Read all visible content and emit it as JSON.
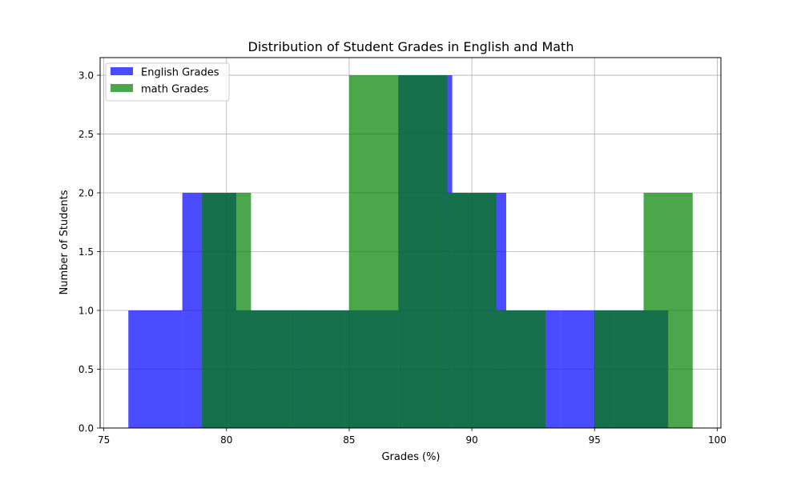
{
  "chart_data": {
    "type": "histogram",
    "title": "Distribution of Student Grades in English and Math",
    "xlabel": "Grades (%)",
    "ylabel": "Number of Students",
    "xlim": [
      74.85,
      100.15
    ],
    "ylim": [
      0,
      3.15
    ],
    "xticks": [
      75,
      80,
      85,
      90,
      95,
      100
    ],
    "yticks": [
      0.0,
      0.5,
      1.0,
      1.5,
      2.0,
      2.5,
      3.0
    ],
    "grid": true,
    "legend_position": "top-left",
    "bar_opacity": 0.7,
    "series": [
      {
        "name": "English Grades",
        "color": "#0000ff",
        "bins": [
          {
            "x0": 76.0,
            "x1": 78.2,
            "count": 1
          },
          {
            "x0": 78.2,
            "x1": 80.4,
            "count": 2
          },
          {
            "x0": 80.4,
            "x1": 82.6,
            "count": 1
          },
          {
            "x0": 82.6,
            "x1": 84.8,
            "count": 1
          },
          {
            "x0": 84.8,
            "x1": 87.0,
            "count": 1
          },
          {
            "x0": 87.0,
            "x1": 89.2,
            "count": 3
          },
          {
            "x0": 89.2,
            "x1": 91.4,
            "count": 2
          },
          {
            "x0": 91.4,
            "x1": 93.6,
            "count": 1
          },
          {
            "x0": 93.6,
            "x1": 95.8,
            "count": 1
          },
          {
            "x0": 95.8,
            "x1": 98.0,
            "count": 1
          }
        ]
      },
      {
        "name": "math Grades",
        "color": "#008000",
        "bins": [
          {
            "x0": 79.0,
            "x1": 81.0,
            "count": 2
          },
          {
            "x0": 81.0,
            "x1": 83.0,
            "count": 1
          },
          {
            "x0": 83.0,
            "x1": 85.0,
            "count": 1
          },
          {
            "x0": 85.0,
            "x1": 87.0,
            "count": 3
          },
          {
            "x0": 87.0,
            "x1": 89.0,
            "count": 3
          },
          {
            "x0": 89.0,
            "x1": 91.0,
            "count": 2
          },
          {
            "x0": 91.0,
            "x1": 93.0,
            "count": 1
          },
          {
            "x0": 93.0,
            "x1": 95.0,
            "count": 0
          },
          {
            "x0": 95.0,
            "x1": 97.0,
            "count": 1
          },
          {
            "x0": 97.0,
            "x1": 99.0,
            "count": 2
          }
        ]
      }
    ]
  }
}
